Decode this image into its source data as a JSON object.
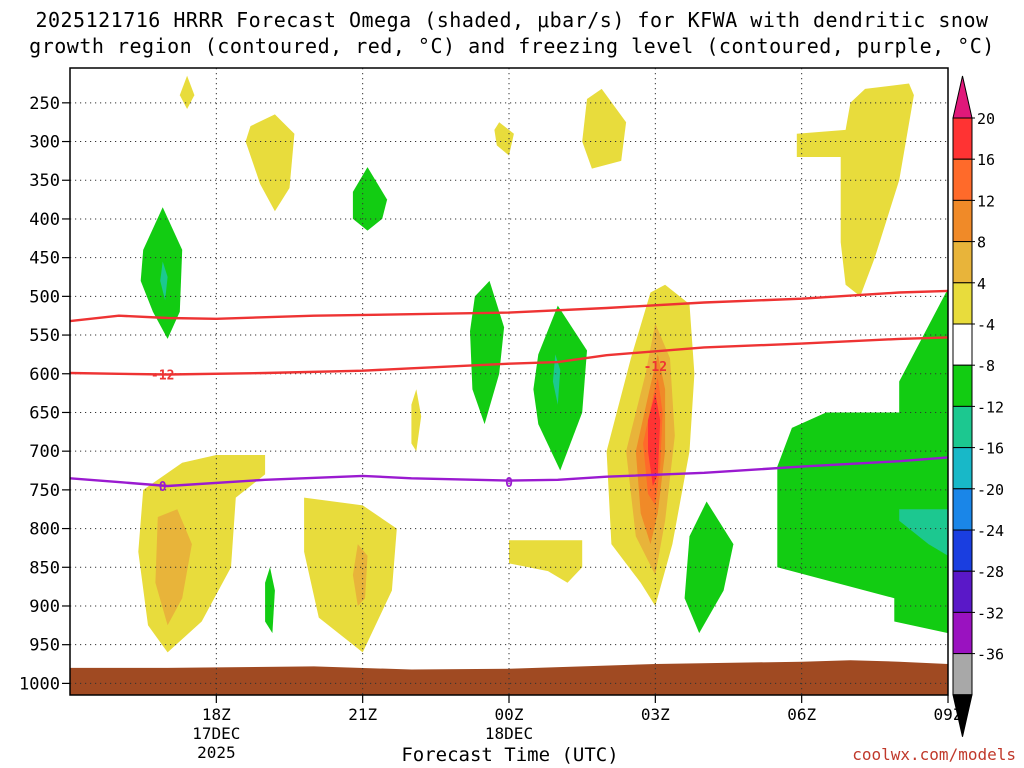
{
  "chart_data": {
    "type": "heatmap",
    "title_line1": "2025121716 HRRR Forecast Omega (shaded, μbar/s) for KFWA with dendritic snow",
    "title_line2": "growth region (contoured, red, °C) and freezing level (contoured, purple, °C)",
    "xlabel": "Forecast Time (UTC)",
    "credit": "coolwx.com/models",
    "x_range_hours": [
      15.0,
      33.0
    ],
    "y_range_hpa": [
      205,
      1015
    ],
    "y_ticks": [
      250,
      300,
      350,
      400,
      450,
      500,
      550,
      600,
      650,
      700,
      750,
      800,
      850,
      900,
      950,
      1000
    ],
    "x_ticks": [
      {
        "hour": 18,
        "lines": [
          "18Z",
          "17DEC",
          "2025"
        ]
      },
      {
        "hour": 21,
        "lines": [
          "21Z"
        ]
      },
      {
        "hour": 24,
        "lines": [
          "00Z",
          "18DEC"
        ]
      },
      {
        "hour": 27,
        "lines": [
          "03Z"
        ]
      },
      {
        "hour": 30,
        "lines": [
          "06Z"
        ]
      },
      {
        "hour": 33,
        "lines": [
          "09Z"
        ]
      }
    ],
    "colorbar": {
      "labels": [
        "20",
        "16",
        "12",
        "8",
        "4",
        "-4",
        "-8",
        "-12",
        "-16",
        "-20",
        "-24",
        "-28",
        "-32",
        "-36"
      ],
      "colors": [
        "#ff3333",
        "#ff6a2a",
        "#f08a28",
        "#e8b43a",
        "#e8dc3c",
        "#ffffff",
        "#12cc12",
        "#1cc890",
        "#18b8c8",
        "#1a86e8",
        "#1a3ee0",
        "#5a18c8",
        "#9a12c0",
        "#a8a8a8"
      ],
      "top_color": "#e0187a",
      "bottom_color": "#000000"
    },
    "contours": [
      {
        "name": "dgz-top",
        "color": "#ee3333",
        "label": "",
        "points": [
          [
            15,
            532
          ],
          [
            16,
            525
          ],
          [
            17,
            528
          ],
          [
            18,
            529
          ],
          [
            20,
            525
          ],
          [
            22,
            523
          ],
          [
            24,
            521
          ],
          [
            26,
            515
          ],
          [
            28,
            508
          ],
          [
            30,
            503
          ],
          [
            32,
            495
          ],
          [
            33,
            493
          ]
        ]
      },
      {
        "name": "dgz-bottom",
        "color": "#ee3333",
        "label": "-12",
        "label_at": [
          16.9,
          601
        ],
        "label_at2": [
          27.0,
          590
        ],
        "points": [
          [
            15,
            599
          ],
          [
            16,
            600
          ],
          [
            17,
            601
          ],
          [
            19,
            599
          ],
          [
            21,
            596
          ],
          [
            22,
            593
          ],
          [
            24,
            587
          ],
          [
            25,
            585
          ],
          [
            26,
            576
          ],
          [
            28,
            566
          ],
          [
            30,
            561
          ],
          [
            32,
            555
          ],
          [
            33,
            553
          ]
        ]
      },
      {
        "name": "freezing-level",
        "color": "#9a1ad0",
        "label": "0",
        "label_at": [
          16.9,
          745
        ],
        "label_at2": [
          24.0,
          740
        ],
        "points": [
          [
            15,
            735
          ],
          [
            16,
            740
          ],
          [
            17,
            745
          ],
          [
            19,
            737
          ],
          [
            21,
            732
          ],
          [
            22,
            735
          ],
          [
            24,
            738
          ],
          [
            25,
            737
          ],
          [
            26,
            733
          ],
          [
            28,
            728
          ],
          [
            30,
            720
          ],
          [
            32,
            713
          ],
          [
            33,
            708
          ]
        ]
      }
    ],
    "shaded_regions": [
      {
        "name": "ascent-22z-upper",
        "value": 6,
        "color": "#e8dc3c",
        "points": [
          [
            17.4,
            215
          ],
          [
            17.55,
            240
          ],
          [
            17.4,
            258
          ],
          [
            17.25,
            240
          ]
        ]
      },
      {
        "name": "ascent-19z",
        "value": 6,
        "color": "#e8dc3c",
        "points": [
          [
            18.7,
            280
          ],
          [
            19.2,
            265
          ],
          [
            19.6,
            290
          ],
          [
            19.5,
            360
          ],
          [
            19.2,
            390
          ],
          [
            18.9,
            355
          ],
          [
            18.6,
            300
          ]
        ]
      },
      {
        "name": "ascent-2330",
        "value": 6,
        "color": "#e8dc3c",
        "points": [
          [
            23.8,
            275
          ],
          [
            24.1,
            290
          ],
          [
            24.0,
            318
          ],
          [
            23.75,
            305
          ],
          [
            23.7,
            285
          ]
        ]
      },
      {
        "name": "ascent-02z-upper",
        "value": 6,
        "color": "#e8dc3c",
        "points": [
          [
            25.6,
            245
          ],
          [
            25.9,
            232
          ],
          [
            26.4,
            275
          ],
          [
            26.3,
            325
          ],
          [
            25.7,
            335
          ],
          [
            25.5,
            300
          ]
        ]
      },
      {
        "name": "ascent-08z",
        "value": 6,
        "color": "#e8dc3c",
        "points": [
          [
            29.9,
            290
          ],
          [
            30.9,
            285
          ],
          [
            31.0,
            250
          ],
          [
            31.3,
            232
          ],
          [
            32.2,
            225
          ],
          [
            32.3,
            240
          ],
          [
            32.0,
            350
          ],
          [
            31.5,
            450
          ],
          [
            31.2,
            500
          ],
          [
            30.9,
            485
          ],
          [
            30.8,
            430
          ],
          [
            30.8,
            320
          ],
          [
            29.9,
            320
          ]
        ]
      },
      {
        "name": "descent-17z",
        "value": -6,
        "color": "#12cc12",
        "points": [
          [
            16.5,
            440
          ],
          [
            16.9,
            385
          ],
          [
            17.3,
            440
          ],
          [
            17.25,
            520
          ],
          [
            17.0,
            555
          ],
          [
            16.7,
            520
          ],
          [
            16.45,
            480
          ]
        ]
      },
      {
        "name": "descent-17z-core",
        "value": -10,
        "color": "#1cc890",
        "points": [
          [
            16.9,
            455
          ],
          [
            17.0,
            475
          ],
          [
            16.95,
            505
          ],
          [
            16.85,
            480
          ]
        ]
      },
      {
        "name": "descent-21z",
        "value": -6,
        "color": "#12cc12",
        "points": [
          [
            20.8,
            365
          ],
          [
            21.1,
            333
          ],
          [
            21.5,
            375
          ],
          [
            21.4,
            400
          ],
          [
            21.1,
            415
          ],
          [
            20.8,
            400
          ]
        ]
      },
      {
        "name": "descent-2245",
        "value": -6,
        "color": "#12cc12",
        "points": [
          [
            23.3,
            500
          ],
          [
            23.6,
            480
          ],
          [
            23.9,
            540
          ],
          [
            23.8,
            600
          ],
          [
            23.5,
            665
          ],
          [
            23.25,
            620
          ],
          [
            23.2,
            545
          ]
        ]
      },
      {
        "name": "descent-01z",
        "value": -6,
        "color": "#12cc12",
        "points": [
          [
            24.6,
            575
          ],
          [
            25.0,
            512
          ],
          [
            25.6,
            570
          ],
          [
            25.5,
            650
          ],
          [
            25.05,
            725
          ],
          [
            24.6,
            665
          ],
          [
            24.5,
            620
          ]
        ]
      },
      {
        "name": "descent-01z-core",
        "value": -10,
        "color": "#1cc890",
        "points": [
          [
            24.95,
            575
          ],
          [
            25.05,
            595
          ],
          [
            25.0,
            640
          ],
          [
            24.9,
            610
          ]
        ]
      },
      {
        "name": "descent-0330",
        "value": -6,
        "color": "#12cc12",
        "points": [
          [
            28.05,
            765
          ],
          [
            28.6,
            820
          ],
          [
            28.4,
            880
          ],
          [
            27.9,
            935
          ],
          [
            27.6,
            890
          ],
          [
            27.7,
            810
          ]
        ]
      },
      {
        "name": "descent-09z",
        "value": -6,
        "color": "#12cc12",
        "points": [
          [
            29.5,
            720
          ],
          [
            29.8,
            670
          ],
          [
            30.5,
            650
          ],
          [
            32.0,
            650
          ],
          [
            32.0,
            610
          ],
          [
            33.0,
            490
          ],
          [
            33.0,
            935
          ],
          [
            31.9,
            920
          ],
          [
            31.9,
            890
          ],
          [
            29.5,
            850
          ]
        ]
      },
      {
        "name": "descent-09z-core",
        "value": -10,
        "color": "#1cc890",
        "points": [
          [
            32.0,
            775
          ],
          [
            33.0,
            775
          ],
          [
            33.0,
            835
          ],
          [
            32.6,
            820
          ],
          [
            32.0,
            790
          ]
        ]
      },
      {
        "name": "descent-1830",
        "value": -6,
        "color": "#12cc12",
        "points": [
          [
            19.0,
            870
          ],
          [
            19.1,
            850
          ],
          [
            19.2,
            880
          ],
          [
            19.15,
            935
          ],
          [
            19.0,
            920
          ]
        ]
      },
      {
        "name": "ascent-18z-low",
        "value": 6,
        "color": "#e8dc3c",
        "points": [
          [
            16.5,
            750
          ],
          [
            17.3,
            715
          ],
          [
            18.0,
            705
          ],
          [
            19.0,
            705
          ],
          [
            19.0,
            730
          ],
          [
            18.4,
            760
          ],
          [
            18.3,
            850
          ],
          [
            17.7,
            920
          ],
          [
            17.0,
            960
          ],
          [
            16.6,
            925
          ],
          [
            16.4,
            830
          ]
        ]
      },
      {
        "name": "ascent-18z-low-core",
        "value": 10,
        "color": "#e8b43a",
        "points": [
          [
            16.8,
            785
          ],
          [
            17.2,
            775
          ],
          [
            17.5,
            820
          ],
          [
            17.3,
            890
          ],
          [
            17.0,
            925
          ],
          [
            16.75,
            870
          ]
        ]
      },
      {
        "name": "ascent-21z-low",
        "value": 6,
        "color": "#e8dc3c",
        "points": [
          [
            19.8,
            760
          ],
          [
            21.0,
            770
          ],
          [
            21.7,
            800
          ],
          [
            21.6,
            880
          ],
          [
            21.0,
            960
          ],
          [
            20.1,
            915
          ],
          [
            19.8,
            830
          ]
        ]
      },
      {
        "name": "ascent-21z-low-core",
        "value": 10,
        "color": "#e8b43a",
        "points": [
          [
            20.9,
            820
          ],
          [
            21.1,
            835
          ],
          [
            21.05,
            890
          ],
          [
            20.9,
            900
          ],
          [
            20.8,
            860
          ]
        ]
      },
      {
        "name": "ascent-22z-thin",
        "value": 6,
        "color": "#e8dc3c",
        "points": [
          [
            22.0,
            640
          ],
          [
            22.1,
            620
          ],
          [
            22.2,
            655
          ],
          [
            22.1,
            700
          ],
          [
            22.0,
            690
          ]
        ]
      },
      {
        "name": "ascent-01z-low",
        "value": 6,
        "color": "#e8dc3c",
        "points": [
          [
            24.0,
            815
          ],
          [
            25.5,
            815
          ],
          [
            25.5,
            850
          ],
          [
            25.2,
            870
          ],
          [
            24.8,
            855
          ],
          [
            24.0,
            845
          ]
        ]
      },
      {
        "name": "ascent-03z",
        "value": 6,
        "color": "#e8dc3c",
        "points": [
          [
            26.0,
            700
          ],
          [
            26.5,
            580
          ],
          [
            26.9,
            495
          ],
          [
            27.2,
            485
          ],
          [
            27.7,
            510
          ],
          [
            27.8,
            600
          ],
          [
            27.7,
            700
          ],
          [
            27.35,
            820
          ],
          [
            27.0,
            900
          ],
          [
            26.7,
            870
          ],
          [
            26.1,
            820
          ]
        ]
      },
      {
        "name": "ascent-03z-c10",
        "value": 10,
        "color": "#e8b43a",
        "points": [
          [
            26.4,
            700
          ],
          [
            26.8,
            600
          ],
          [
            27.0,
            535
          ],
          [
            27.3,
            580
          ],
          [
            27.4,
            680
          ],
          [
            27.2,
            790
          ],
          [
            27.0,
            860
          ],
          [
            26.6,
            810
          ]
        ]
      },
      {
        "name": "ascent-03z-c14",
        "value": 14,
        "color": "#f08a28",
        "points": [
          [
            26.6,
            700
          ],
          [
            26.9,
            615
          ],
          [
            27.05,
            575
          ],
          [
            27.2,
            620
          ],
          [
            27.2,
            700
          ],
          [
            27.05,
            780
          ],
          [
            26.9,
            820
          ],
          [
            26.7,
            780
          ]
        ]
      },
      {
        "name": "ascent-03z-c18",
        "value": 18,
        "color": "#ff6a2a",
        "points": [
          [
            26.75,
            690
          ],
          [
            26.95,
            630
          ],
          [
            27.05,
            605
          ],
          [
            27.15,
            650
          ],
          [
            27.1,
            720
          ],
          [
            27.0,
            770
          ],
          [
            26.85,
            755
          ]
        ]
      },
      {
        "name": "ascent-03z-c22",
        "value": 22,
        "color": "#ff3333",
        "points": [
          [
            26.85,
            660
          ],
          [
            27.0,
            625
          ],
          [
            27.1,
            660
          ],
          [
            27.05,
            730
          ],
          [
            26.95,
            745
          ],
          [
            26.85,
            700
          ]
        ]
      }
    ],
    "terrain": {
      "name": "ground-below-surface",
      "color": "#a04a22",
      "points": [
        [
          15,
          980
        ],
        [
          17,
          980
        ],
        [
          20,
          978
        ],
        [
          22,
          982
        ],
        [
          24,
          981
        ],
        [
          27,
          975
        ],
        [
          30,
          972
        ],
        [
          31,
          970
        ],
        [
          32,
          972
        ],
        [
          33,
          975
        ],
        [
          33,
          1015
        ],
        [
          15,
          1015
        ]
      ]
    }
  }
}
